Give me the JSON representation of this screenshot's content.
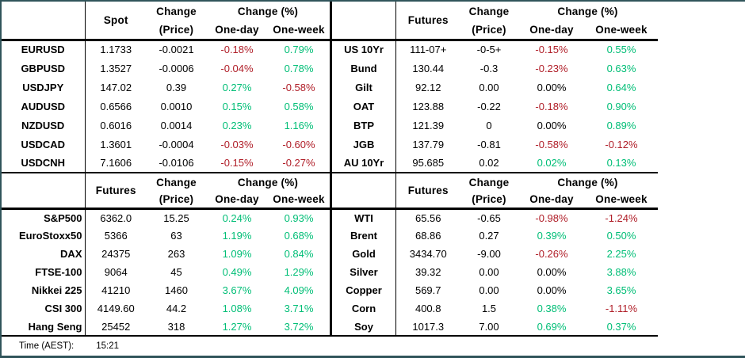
{
  "colors": {
    "positive": "#00be76",
    "negative": "#b01e28",
    "neutral": "#000000",
    "frame": "#30545a"
  },
  "labels": {
    "change": "Change",
    "price": "(Price)",
    "change_pct": "Change (%)",
    "one_day": "One-day",
    "one_week": "One-week"
  },
  "footer": {
    "label": "Time (AEST):",
    "value": "15:21"
  },
  "chart_data": [
    {
      "type": "table",
      "section": "fx-spot",
      "value_header": "Spot",
      "columns": [
        "",
        "Spot",
        "Change (Price)",
        "One-day",
        "One-week"
      ],
      "rows": [
        [
          "EURUSD",
          "1.1733",
          "-0.0021",
          "-0.18%",
          "0.79%"
        ],
        [
          "GBPUSD",
          "1.3527",
          "-0.0006",
          "-0.04%",
          "0.78%"
        ],
        [
          "USDJPY",
          "147.02",
          "0.39",
          "0.27%",
          "-0.58%"
        ],
        [
          "AUDUSD",
          "0.6566",
          "0.0010",
          "0.15%",
          "0.58%"
        ],
        [
          "NZDUSD",
          "0.6016",
          "0.0014",
          "0.23%",
          "1.16%"
        ],
        [
          "USDCAD",
          "1.3601",
          "-0.0004",
          "-0.03%",
          "-0.60%"
        ],
        [
          "USDCNH",
          "7.1606",
          "-0.0106",
          "-0.15%",
          "-0.27%"
        ]
      ]
    },
    {
      "type": "table",
      "section": "bond-futures",
      "value_header": "Futures",
      "columns": [
        "",
        "Futures",
        "Change (Price)",
        "One-day",
        "One-week"
      ],
      "rows": [
        [
          "US 10Yr",
          "111-07+",
          "-0-5+",
          "-0.15%",
          "0.55%"
        ],
        [
          "Bund",
          "130.44",
          "-0.3",
          "-0.23%",
          "0.63%"
        ],
        [
          "Gilt",
          "92.12",
          "0.00",
          "0.00%",
          "0.64%"
        ],
        [
          "OAT",
          "123.88",
          "-0.22",
          "-0.18%",
          "0.90%"
        ],
        [
          "BTP",
          "121.39",
          "0",
          "0.00%",
          "0.89%"
        ],
        [
          "JGB",
          "137.79",
          "-0.81",
          "-0.58%",
          "-0.12%"
        ],
        [
          "AU 10Yr",
          "95.685",
          "0.02",
          "0.02%",
          "0.13%"
        ]
      ]
    },
    {
      "type": "table",
      "section": "equity-futures",
      "value_header": "Futures",
      "columns": [
        "",
        "Futures",
        "Change (Price)",
        "One-day",
        "One-week"
      ],
      "rows": [
        [
          "S&P500",
          "6362.0",
          "15.25",
          "0.24%",
          "0.93%"
        ],
        [
          "EuroStoxx50",
          "5366",
          "63",
          "1.19%",
          "0.68%"
        ],
        [
          "DAX",
          "24375",
          "263",
          "1.09%",
          "0.84%"
        ],
        [
          "FTSE-100",
          "9064",
          "45",
          "0.49%",
          "1.29%"
        ],
        [
          "Nikkei 225",
          "41210",
          "1460",
          "3.67%",
          "4.09%"
        ],
        [
          "CSI 300",
          "4149.60",
          "44.2",
          "1.08%",
          "3.71%"
        ],
        [
          "Hang Seng",
          "25452",
          "318",
          "1.27%",
          "3.72%"
        ]
      ]
    },
    {
      "type": "table",
      "section": "commodity-futures",
      "value_header": "Futures",
      "columns": [
        "",
        "Futures",
        "Change (Price)",
        "One-day",
        "One-week"
      ],
      "rows": [
        [
          "WTI",
          "65.56",
          "-0.65",
          "-0.98%",
          "-1.24%"
        ],
        [
          "Brent",
          "68.86",
          "0.27",
          "0.39%",
          "0.50%"
        ],
        [
          "Gold",
          "3434.70",
          "-9.00",
          "-0.26%",
          "2.25%"
        ],
        [
          "Silver",
          "39.32",
          "0.00",
          "0.00%",
          "3.88%"
        ],
        [
          "Copper",
          "569.7",
          "0.00",
          "0.00%",
          "3.65%"
        ],
        [
          "Corn",
          "400.8",
          "1.5",
          "0.38%",
          "-1.11%"
        ],
        [
          "Soy",
          "1017.3",
          "7.00",
          "0.69%",
          "0.37%"
        ]
      ]
    }
  ]
}
